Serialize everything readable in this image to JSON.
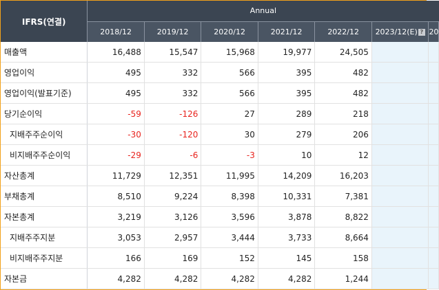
{
  "header": {
    "name": "IFRS(연결)",
    "group": "Annual",
    "periods": [
      "2018/12",
      "2019/12",
      "2020/12",
      "2021/12",
      "2022/12",
      "2023/12(E)",
      "20"
    ],
    "estimate_icon": "?"
  },
  "colors": {
    "header_bg": "#3b4552",
    "negative": "#e8231d",
    "estimate_bg": "#e9f4fb",
    "frame_border": "#f2a11a"
  },
  "rows": [
    {
      "label": "매출액",
      "sub": false,
      "values": [
        "16,488",
        "15,547",
        "15,968",
        "19,977",
        "24,505"
      ]
    },
    {
      "label": "영업이익",
      "sub": false,
      "values": [
        "495",
        "332",
        "566",
        "395",
        "482"
      ]
    },
    {
      "label": "영업이익(발표기준)",
      "sub": false,
      "values": [
        "495",
        "332",
        "566",
        "395",
        "482"
      ]
    },
    {
      "label": "당기순이익",
      "sub": false,
      "values": [
        "-59",
        "-126",
        "27",
        "289",
        "218"
      ]
    },
    {
      "label": "지배주주순이익",
      "sub": true,
      "values": [
        "-30",
        "-120",
        "30",
        "279",
        "206"
      ]
    },
    {
      "label": "비지배주주순이익",
      "sub": true,
      "values": [
        "-29",
        "-6",
        "-3",
        "10",
        "12"
      ]
    },
    {
      "label": "자산총계",
      "sub": false,
      "values": [
        "11,729",
        "12,351",
        "11,995",
        "14,209",
        "16,203"
      ]
    },
    {
      "label": "부채총계",
      "sub": false,
      "values": [
        "8,510",
        "9,224",
        "8,398",
        "10,331",
        "7,381"
      ]
    },
    {
      "label": "자본총계",
      "sub": false,
      "values": [
        "3,219",
        "3,126",
        "3,596",
        "3,878",
        "8,822"
      ]
    },
    {
      "label": "지배주주지분",
      "sub": true,
      "values": [
        "3,053",
        "2,957",
        "3,444",
        "3,733",
        "8,664"
      ]
    },
    {
      "label": "비지배주주지분",
      "sub": true,
      "values": [
        "166",
        "169",
        "152",
        "145",
        "158"
      ]
    },
    {
      "label": "자본금",
      "sub": false,
      "values": [
        "4,282",
        "4,282",
        "4,282",
        "4,282",
        "1,244"
      ]
    }
  ]
}
